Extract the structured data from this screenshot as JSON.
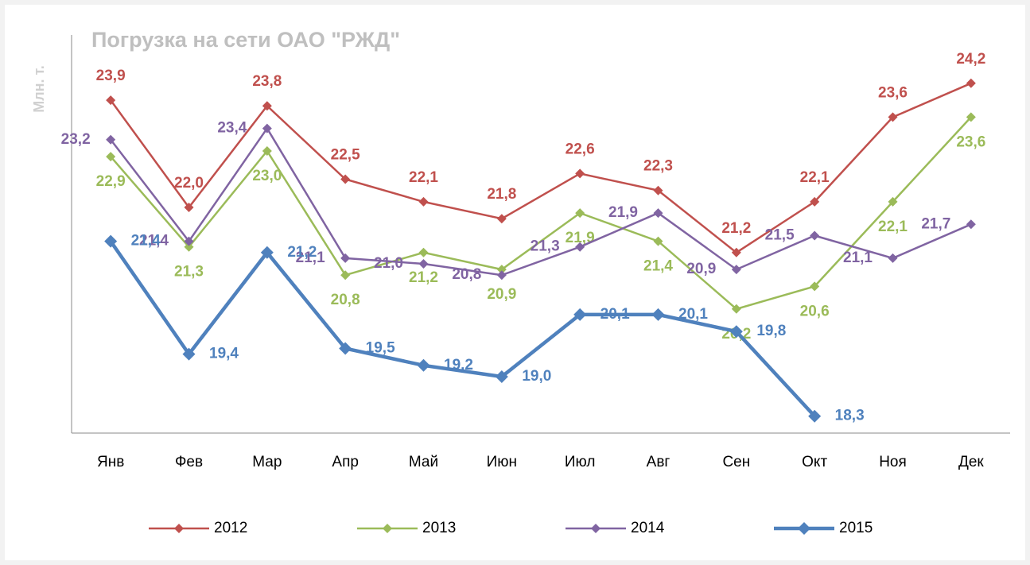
{
  "chart_data": {
    "type": "line",
    "title": "Погрузка на сети ОАО \"РЖД\"",
    "y_label": "Млн. т.",
    "categories": [
      "Янв",
      "Фев",
      "Мар",
      "Апр",
      "Май",
      "Июн",
      "Июл",
      "Авг",
      "Сен",
      "Окт",
      "Ноя",
      "Дек"
    ],
    "ylim": [
      18,
      25
    ],
    "legend": "bottom",
    "series": [
      {
        "name": "2012",
        "color": "#c0504d",
        "line_width": 2.5,
        "values": [
          23.9,
          22.0,
          23.8,
          22.5,
          22.1,
          21.8,
          22.6,
          22.3,
          21.2,
          22.1,
          23.6,
          24.2
        ],
        "value_labels": [
          "23,9",
          "22,0",
          "23,8",
          "22,5",
          "22,1",
          "21,8",
          "22,6",
          "22,3",
          "21,2",
          "22,1",
          "23,6",
          "24,2"
        ]
      },
      {
        "name": "2013",
        "color": "#9bbb59",
        "line_width": 2.5,
        "values": [
          22.9,
          21.3,
          23.0,
          20.8,
          21.2,
          20.9,
          21.9,
          21.4,
          20.2,
          20.6,
          22.1,
          23.6
        ],
        "value_labels": [
          "22,9",
          "21,3",
          "23,0",
          "20,8",
          "21,2",
          "20,9",
          "21,9",
          "21,4",
          "20,2",
          "20,6",
          "22,1",
          "23,6"
        ]
      },
      {
        "name": "2014",
        "color": "#8064a2",
        "line_width": 2.5,
        "values": [
          23.2,
          21.4,
          23.4,
          21.1,
          21.0,
          20.8,
          21.3,
          21.9,
          20.9,
          21.5,
          21.1,
          21.7
        ],
        "value_labels": [
          "23,2",
          "21,4",
          "23,4",
          "21,1",
          "21,0",
          "20,8",
          "21,3",
          "21,9",
          "20,9",
          "21,5",
          "21,1",
          "21,7"
        ]
      },
      {
        "name": "2015",
        "color": "#4f81bd",
        "line_width": 4.5,
        "values": [
          21.4,
          19.4,
          21.2,
          19.5,
          19.2,
          19.0,
          20.1,
          20.1,
          19.8,
          18.3,
          null,
          null
        ],
        "value_labels": [
          "21,4",
          "19,4",
          "21,2",
          "19,5",
          "19,2",
          "19,0",
          "20,1",
          "20,1",
          "19,8",
          "18,3",
          null,
          null
        ]
      }
    ]
  }
}
